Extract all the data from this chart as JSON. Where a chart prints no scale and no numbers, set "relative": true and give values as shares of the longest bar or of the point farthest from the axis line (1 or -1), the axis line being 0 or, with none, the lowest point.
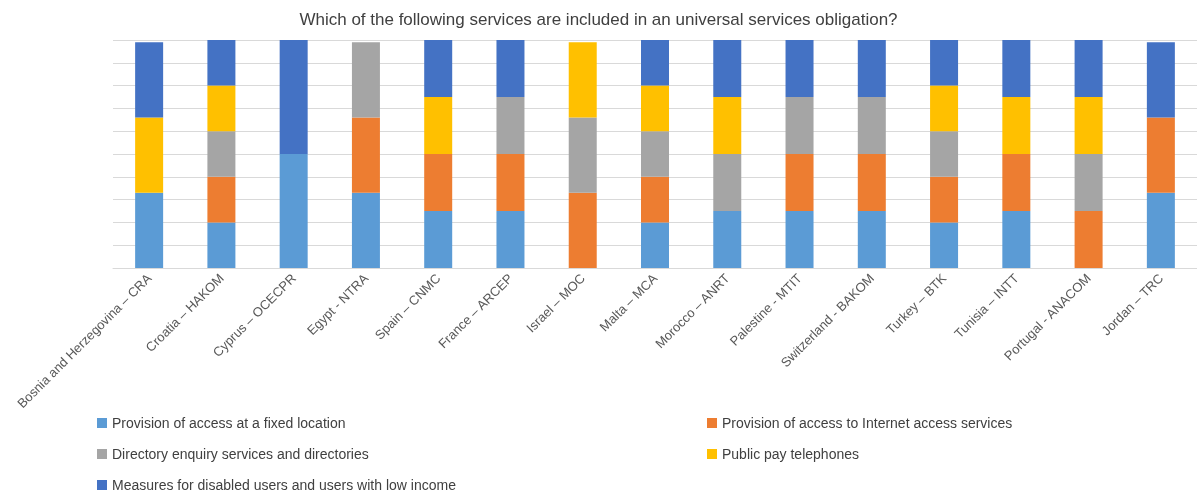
{
  "chart_data": {
    "type": "bar",
    "title": "Which of the following services are included in an universal services obligation?",
    "categories": [
      "Bosnia and Herzegovina – CRA",
      "Croatia – HAKOM",
      "Cyprus – OCECPR",
      "Egypt - NTRA",
      "Spain – CNMC",
      "France – ARCEP",
      "Israel – MOC",
      "Malta – MCA",
      "Morocco – ANRT",
      "Palestine - MTIT",
      "Switzerland - BAKOM",
      "Turkey – BTK",
      "Tunisia – INTT",
      "Portugal - ANACOM",
      "Jordan – TRC"
    ],
    "stacked": true,
    "relative": true,
    "grid": "y",
    "legend": "bottom",
    "series": [
      {
        "name": "Provision of access at a fixed location",
        "color": "#5b9bd5",
        "values": [
          0.33,
          0.2,
          0.5,
          0.33,
          0.25,
          0.25,
          0,
          0.2,
          0.25,
          0.25,
          0.25,
          0.2,
          0.25,
          0,
          0.33
        ]
      },
      {
        "name": "Provision of access to Internet access services",
        "color": "#ed7d31",
        "values": [
          0,
          0.2,
          0,
          0.33,
          0.25,
          0.25,
          0.33,
          0.2,
          0,
          0.25,
          0.25,
          0.2,
          0.25,
          0.25,
          0.33
        ]
      },
      {
        "name": "Directory enquiry services and directories",
        "color": "#a5a5a5",
        "values": [
          0,
          0.2,
          0,
          0.33,
          0,
          0.25,
          0.33,
          0.2,
          0.25,
          0.25,
          0.25,
          0.2,
          0,
          0.25,
          0
        ]
      },
      {
        "name": "Public pay telephones",
        "color": "#ffc000",
        "values": [
          0.33,
          0.2,
          0,
          0,
          0.25,
          0,
          0.33,
          0.2,
          0.25,
          0,
          0,
          0.2,
          0.25,
          0.25,
          0
        ]
      },
      {
        "name": "Measures for disabled users and users with low income",
        "color": "#4472c4",
        "values": [
          0.33,
          0.2,
          0.5,
          0,
          0.25,
          0.25,
          0,
          0.2,
          0.25,
          0.25,
          0.25,
          0.2,
          0.25,
          0.25,
          0.33
        ]
      }
    ]
  }
}
